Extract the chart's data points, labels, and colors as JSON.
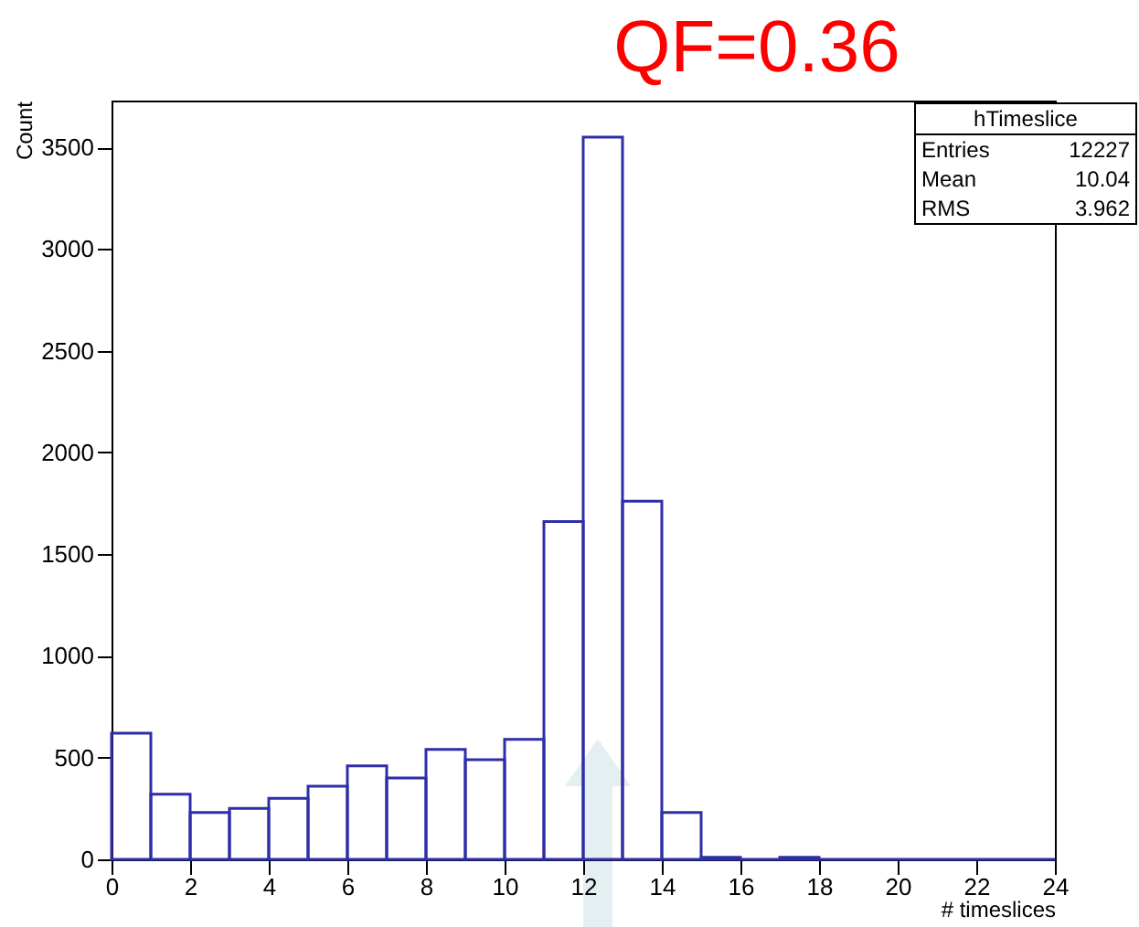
{
  "chart_data": {
    "type": "histogram",
    "title": "QF=0.36",
    "xlabel": "# timeslices",
    "ylabel": "Count",
    "bins": [
      0,
      1,
      2,
      3,
      4,
      5,
      6,
      7,
      8,
      9,
      10,
      11,
      12,
      13,
      14,
      15,
      16,
      17,
      18,
      19,
      20,
      21,
      22,
      23,
      24
    ],
    "values": [
      620,
      320,
      230,
      250,
      300,
      360,
      460,
      400,
      540,
      490,
      590,
      1660,
      3550,
      1760,
      230,
      10,
      0,
      10,
      0,
      0,
      0,
      0,
      0,
      0
    ],
    "color": "#2e2ea8",
    "xlim": [
      0,
      24
    ],
    "xticks": [
      0,
      2,
      4,
      6,
      8,
      10,
      12,
      14,
      16,
      18,
      20,
      22,
      24
    ],
    "ylim": [
      0,
      3730
    ],
    "yticks": [
      0,
      500,
      1000,
      1500,
      2000,
      2500,
      3000,
      3500
    ],
    "grid": false,
    "annotations": [
      "hTimeslice",
      "Entries",
      "12227",
      "Mean",
      "10.04",
      "RMS",
      "3.962"
    ]
  }
}
